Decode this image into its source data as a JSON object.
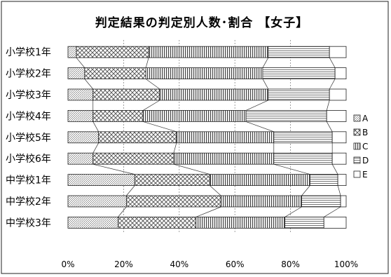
{
  "chart_data": {
    "type": "bar",
    "orientation": "horizontal",
    "stacked": "percent",
    "title": "判定結果の判定別人数･割合 【女子】",
    "categories": [
      "小学校1年",
      "小学校2年",
      "小学校3年",
      "小学校4年",
      "小学校5年",
      "小学校6年",
      "中学校1年",
      "中学校2年",
      "中学校3年"
    ],
    "series": [
      {
        "name": "A",
        "values": [
          3,
          6,
          9,
          9,
          11,
          9,
          24,
          21,
          18
        ]
      },
      {
        "name": "B",
        "values": [
          26,
          22,
          24,
          18,
          28,
          29,
          27,
          34,
          28
        ]
      },
      {
        "name": "C",
        "values": [
          43,
          42,
          39,
          37,
          35,
          36,
          36,
          29,
          32
        ]
      },
      {
        "name": "D",
        "values": [
          22,
          26,
          22,
          29,
          21,
          21,
          10,
          14,
          14
        ]
      },
      {
        "name": "E",
        "values": [
          6,
          4,
          6,
          7,
          5,
          5,
          3,
          2,
          8
        ]
      }
    ],
    "xlim": [
      0,
      100
    ],
    "xticks": [
      "0%",
      "20%",
      "40%",
      "60%",
      "80%",
      "100%"
    ],
    "grid": true,
    "legend": "right"
  }
}
